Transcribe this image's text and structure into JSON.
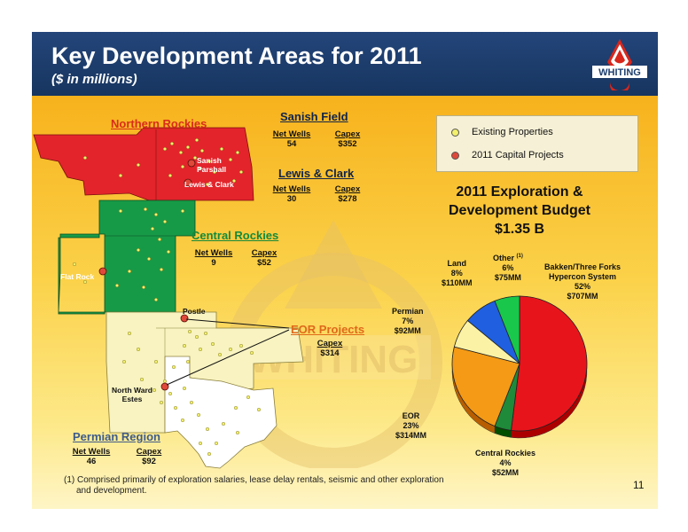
{
  "header": {
    "title": "Key Development Areas for 2011",
    "subtitle": "($ in millions)",
    "logo_text": "WHITING"
  },
  "colors": {
    "header_bg": "#1e3f6f",
    "content_bg_top": "#f7b21c",
    "content_bg_bottom": "#fef5c6",
    "existing_properties": "#f3f06b",
    "capital_projects": "#e0493a",
    "northern_rockies": "#e3242b",
    "central_rockies": "#179a47",
    "permian": "#f8f3c0"
  },
  "map": {
    "northern_rockies": {
      "label": "Northern Rockies",
      "markers": [
        "Sanish",
        "Parshall",
        "Lewis & Clark"
      ]
    },
    "central_rockies": {
      "label": "Central Rockies",
      "net_wells_label": "Net Wells",
      "net_wells": "9",
      "capex_label": "Capex",
      "capex": "$52",
      "markers": [
        "Flat Rock"
      ]
    },
    "permian": {
      "label": "Permian Region",
      "net_wells_label": "Net Wells",
      "net_wells": "46",
      "capex_label": "Capex",
      "capex": "$92",
      "markers": [
        "Postle",
        "North Ward Estes"
      ]
    },
    "sanish_field": {
      "label": "Sanish Field",
      "net_wells_label": "Net Wells",
      "net_wells": "54",
      "capex_label": "Capex",
      "capex": "$352"
    },
    "lewis_clark": {
      "label": "Lewis & Clark",
      "net_wells_label": "Net Wells",
      "net_wells": "30",
      "capex_label": "Capex",
      "capex": "$278"
    },
    "eor_projects": {
      "label": "EOR Projects",
      "capex_label": "Capex",
      "capex": "$314"
    },
    "marker_labels": {
      "sanish": "Sanish",
      "parshall": "Parshall",
      "lewis_clark": "Lewis & Clark",
      "flat_rock": "Flat Rock",
      "postle": "Postle",
      "north_ward": "North Ward",
      "estes": "Estes"
    }
  },
  "legend": {
    "items": [
      {
        "label": "Existing Properties",
        "color": "#f3f06b"
      },
      {
        "label": "2011 Capital Projects",
        "color": "#e0493a"
      }
    ]
  },
  "chart_data": {
    "type": "pie",
    "title": "2011 Exploration & Development Budget",
    "total": "$1.35 B",
    "slices": [
      {
        "name": "Bakken/Three Forks Hyperconcentration System",
        "display_name": "Bakken/Three Forks",
        "display_name2": "Hypercon System",
        "percent": 52,
        "percent_label": "52%",
        "value_label": "$707MM",
        "value": 707,
        "color": "#e8141c"
      },
      {
        "name": "Central Rockies",
        "percent": 4,
        "percent_label": "4%",
        "value_label": "$52MM",
        "value": 52,
        "color": "#1f8a3a"
      },
      {
        "name": "EOR",
        "percent": 23,
        "percent_label": "23%",
        "value_label": "$314MM",
        "value": 314,
        "color": "#f49a16"
      },
      {
        "name": "Permian",
        "percent": 7,
        "percent_label": "7%",
        "value_label": "$92MM",
        "value": 92,
        "color": "#fbf2a6"
      },
      {
        "name": "Land",
        "percent": 8,
        "percent_label": "8%",
        "value_label": "$110MM",
        "value": 110,
        "color": "#1f5fe0"
      },
      {
        "name": "Other (1)",
        "display_name": "Other",
        "superscript": "(1)",
        "percent": 6,
        "percent_label": "6%",
        "value_label": "$75MM",
        "value": 75,
        "color": "#19c74a"
      }
    ]
  },
  "footnote": {
    "line1": "(1) Comprised primarily of exploration salaries, lease delay rentals, seismic and other exploration",
    "line2": "and development."
  },
  "page_number": "11"
}
